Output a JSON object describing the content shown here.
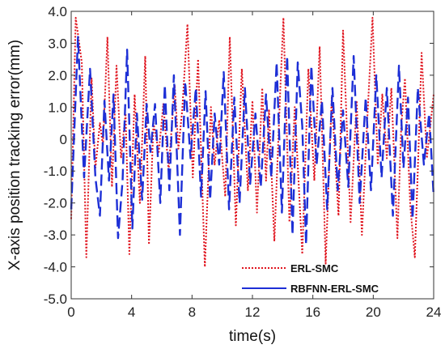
{
  "chart_data": {
    "type": "line",
    "title": "",
    "xlabel": "time(s)",
    "ylabel": "X-axis position tracking error(mm)",
    "xlim": [
      0,
      24
    ],
    "ylim": [
      -5.0,
      4.0
    ],
    "x_ticks": [
      "0",
      "4",
      "8",
      "12",
      "16",
      "20",
      "24"
    ],
    "y_ticks": [
      "-5.0",
      "-4.0",
      "-3.0",
      "-2.0",
      "-1.0",
      "0",
      "1.0",
      "2.0",
      "3.0",
      "4.0"
    ],
    "grid": false,
    "legend_position": "lower-right",
    "series": [
      {
        "name": "ERL-SMC",
        "color": "#e0141e",
        "style": "dotted",
        "points": [
          [
            0.0,
            -2.5
          ],
          [
            0.3,
            3.8
          ],
          [
            0.7,
            2.4
          ],
          [
            1.0,
            -3.7
          ],
          [
            1.35,
            1.9
          ],
          [
            1.6,
            -0.9
          ],
          [
            1.9,
            0.5
          ],
          [
            2.1,
            -0.2
          ],
          [
            2.4,
            3.2
          ],
          [
            2.7,
            -1.5
          ],
          [
            3.0,
            2.3
          ],
          [
            3.3,
            -0.6
          ],
          [
            3.6,
            0.8
          ],
          [
            3.85,
            -3.6
          ],
          [
            4.2,
            1.4
          ],
          [
            4.55,
            -2.0
          ],
          [
            4.9,
            2.6
          ],
          [
            5.15,
            -3.3
          ],
          [
            5.45,
            0.5
          ],
          [
            5.8,
            -0.4
          ],
          [
            6.1,
            1.1
          ],
          [
            6.45,
            -1.0
          ],
          [
            6.85,
            1.7
          ],
          [
            7.1,
            -0.3
          ],
          [
            7.35,
            0.9
          ],
          [
            7.7,
            3.6
          ],
          [
            8.05,
            -1.2
          ],
          [
            8.4,
            2.5
          ],
          [
            8.85,
            -4.0
          ],
          [
            9.25,
            1.0
          ],
          [
            9.5,
            -0.8
          ],
          [
            9.8,
            0.6
          ],
          [
            10.2,
            -1.8
          ],
          [
            10.5,
            3.2
          ],
          [
            10.9,
            -2.7
          ],
          [
            11.3,
            2.2
          ],
          [
            11.7,
            -1.6
          ],
          [
            12.0,
            1.2
          ],
          [
            12.3,
            -2.3
          ],
          [
            12.65,
            1.6
          ],
          [
            12.9,
            -1.3
          ],
          [
            13.1,
            0.9
          ],
          [
            13.45,
            -3.2
          ],
          [
            13.85,
            1.6
          ],
          [
            14.05,
            3.8
          ],
          [
            14.45,
            -2.6
          ],
          [
            14.8,
            1.0
          ],
          [
            15.3,
            -3.6
          ],
          [
            15.7,
            2.2
          ],
          [
            16.1,
            -1.3
          ],
          [
            16.45,
            2.9
          ],
          [
            16.85,
            -3.9
          ],
          [
            17.25,
            1.3
          ],
          [
            17.7,
            -2.4
          ],
          [
            18.0,
            3.4
          ],
          [
            18.5,
            -2.6
          ],
          [
            18.9,
            1.2
          ],
          [
            19.25,
            -3.0
          ],
          [
            19.6,
            0.6
          ],
          [
            19.95,
            3.8
          ],
          [
            20.3,
            -0.8
          ],
          [
            20.6,
            1.4
          ],
          [
            20.9,
            -0.6
          ],
          [
            21.2,
            1.6
          ],
          [
            21.6,
            -3.1
          ],
          [
            21.85,
            0.4
          ],
          [
            22.1,
            1.9
          ],
          [
            22.45,
            -2.1
          ],
          [
            22.75,
            -3.7
          ],
          [
            23.0,
            -0.3
          ],
          [
            23.2,
            2.7
          ],
          [
            23.55,
            -0.6
          ],
          [
            24.0,
            1.4
          ]
        ]
      },
      {
        "name": "RBFNN-ERL-SMC",
        "color": "#1d2fd6",
        "style": "dashed",
        "points": [
          [
            0.0,
            -2.2
          ],
          [
            0.45,
            3.2
          ],
          [
            0.85,
            -1.2
          ],
          [
            1.25,
            2.2
          ],
          [
            1.6,
            -1.2
          ],
          [
            1.9,
            -2.4
          ],
          [
            2.2,
            1.2
          ],
          [
            2.5,
            -1.3
          ],
          [
            2.8,
            1.4
          ],
          [
            3.1,
            -3.1
          ],
          [
            3.4,
            -1.3
          ],
          [
            3.7,
            2.8
          ],
          [
            4.05,
            -2.8
          ],
          [
            4.35,
            0.8
          ],
          [
            4.7,
            -1.9
          ],
          [
            5.0,
            1.1
          ],
          [
            5.25,
            -0.4
          ],
          [
            5.55,
            1.1
          ],
          [
            5.9,
            -2.0
          ],
          [
            6.2,
            1.7
          ],
          [
            6.5,
            -1.6
          ],
          [
            6.8,
            2.0
          ],
          [
            7.2,
            -3.0
          ],
          [
            7.55,
            1.8
          ],
          [
            7.9,
            -0.6
          ],
          [
            8.25,
            1.6
          ],
          [
            8.6,
            -1.8
          ],
          [
            8.9,
            1.5
          ],
          [
            9.2,
            -1.9
          ],
          [
            9.5,
            0.8
          ],
          [
            9.8,
            -0.8
          ],
          [
            10.1,
            2.1
          ],
          [
            10.45,
            -2.2
          ],
          [
            10.8,
            1.3
          ],
          [
            11.15,
            -2.0
          ],
          [
            11.5,
            1.6
          ],
          [
            11.85,
            -1.4
          ],
          [
            12.2,
            0.8
          ],
          [
            12.55,
            -1.5
          ],
          [
            12.9,
            1.4
          ],
          [
            13.25,
            -1.2
          ],
          [
            13.6,
            2.4
          ],
          [
            13.95,
            -2.3
          ],
          [
            14.3,
            2.6
          ],
          [
            14.65,
            -3.0
          ],
          [
            15.0,
            2.4
          ],
          [
            15.3,
            0.4
          ],
          [
            15.55,
            -3.3
          ],
          [
            15.9,
            2.3
          ],
          [
            16.25,
            -0.8
          ],
          [
            16.6,
            1.2
          ],
          [
            16.95,
            -2.2
          ],
          [
            17.3,
            1.6
          ],
          [
            17.65,
            -1.6
          ],
          [
            18.0,
            0.9
          ],
          [
            18.35,
            -1.5
          ],
          [
            18.7,
            2.6
          ],
          [
            19.1,
            -2.0
          ],
          [
            19.5,
            1.3
          ],
          [
            19.85,
            -1.6
          ],
          [
            20.2,
            2.0
          ],
          [
            20.55,
            -1.2
          ],
          [
            20.9,
            1.6
          ],
          [
            21.3,
            -2.4
          ],
          [
            21.7,
            2.3
          ],
          [
            22.0,
            -0.9
          ],
          [
            22.3,
            1.3
          ],
          [
            22.6,
            -2.5
          ],
          [
            22.95,
            1.6
          ],
          [
            23.35,
            -0.8
          ],
          [
            23.7,
            0.8
          ],
          [
            24.0,
            -1.8
          ]
        ]
      }
    ]
  }
}
